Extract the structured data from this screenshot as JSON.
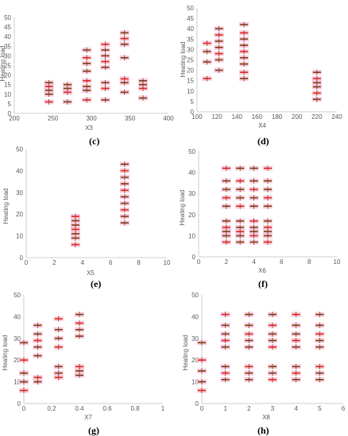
{
  "chart_data": [
    {
      "type": "scatter",
      "caption": "(c)",
      "xlabel": "X3",
      "ylabel": "Heating load",
      "xlim": [
        200,
        400
      ],
      "ylim": [
        0,
        50
      ],
      "xticks": [
        "200",
        "250",
        "300",
        "350",
        "400"
      ],
      "yticks": [
        "0",
        "5",
        "10",
        "15",
        "20",
        "25",
        "30",
        "35",
        "40",
        "45",
        "50"
      ],
      "x": [
        245,
        245,
        245,
        245,
        245,
        269,
        269,
        269,
        269,
        294,
        294,
        294,
        294,
        294,
        294,
        294,
        294,
        318,
        318,
        318,
        318,
        318,
        318,
        318,
        318,
        343,
        343,
        343,
        343,
        343,
        343,
        343,
        367,
        367,
        367,
        367
      ],
      "y": [
        6,
        10,
        12,
        14,
        16,
        6,
        11,
        13,
        15,
        7,
        12,
        14,
        17,
        22,
        26,
        29,
        33,
        7,
        13,
        16,
        24,
        27,
        30,
        33,
        36,
        11,
        16,
        18,
        29,
        36,
        39,
        42,
        8,
        13,
        15,
        17
      ]
    },
    {
      "type": "scatter",
      "caption": "(d)",
      "xlabel": "X4",
      "ylabel": "Heating load",
      "xlim": [
        100,
        240
      ],
      "ylim": [
        0,
        50
      ],
      "xticks": [
        "100",
        "120",
        "140",
        "160",
        "180",
        "200",
        "220",
        "240"
      ],
      "yticks": [
        "0",
        "5",
        "10",
        "15",
        "20",
        "25",
        "30",
        "35",
        "40",
        "45",
        "50"
      ],
      "x": [
        110,
        110,
        110,
        110,
        122,
        122,
        122,
        122,
        122,
        122,
        122,
        147,
        147,
        147,
        147,
        147,
        147,
        147,
        147,
        147,
        220,
        220,
        220,
        220,
        220,
        220
      ],
      "y": [
        16,
        24,
        29,
        33,
        20,
        25,
        28,
        31,
        34,
        37,
        40,
        16,
        19,
        23,
        26,
        29,
        32,
        35,
        38,
        42,
        6,
        9,
        12,
        14,
        16,
        19
      ]
    },
    {
      "type": "scatter",
      "caption": "(e)",
      "xlabel": "X5",
      "ylabel": "Heating load",
      "xlim": [
        0,
        10
      ],
      "ylim": [
        0,
        50
      ],
      "xticks": [
        "0",
        "2",
        "4",
        "6",
        "8",
        "10"
      ],
      "yticks": [
        "0",
        "10",
        "20",
        "30",
        "40",
        "50"
      ],
      "x": [
        3.5,
        3.5,
        3.5,
        3.5,
        3.5,
        3.5,
        3.5,
        7,
        7,
        7,
        7,
        7,
        7,
        7,
        7,
        7,
        7
      ],
      "y": [
        6,
        9,
        11,
        13,
        15,
        17,
        19,
        16,
        19,
        22,
        25,
        28,
        31,
        34,
        37,
        40,
        43
      ]
    },
    {
      "type": "scatter",
      "caption": "(f)",
      "xlabel": "X6",
      "ylabel": "Heating load",
      "xlim": [
        0,
        10
      ],
      "ylim": [
        0,
        50
      ],
      "xticks": [
        "0",
        "2",
        "4",
        "6",
        "8",
        "10"
      ],
      "yticks": [
        "0",
        "10",
        "20",
        "30",
        "40",
        "50"
      ],
      "x": [
        2,
        2,
        2,
        2,
        2,
        2,
        2,
        2,
        2,
        2,
        3,
        3,
        3,
        3,
        3,
        3,
        3,
        3,
        3,
        3,
        4,
        4,
        4,
        4,
        4,
        4,
        4,
        4,
        4,
        4,
        5,
        5,
        5,
        5,
        5,
        5,
        5,
        5,
        5,
        5
      ],
      "y": [
        7,
        10,
        12,
        14,
        17,
        24,
        28,
        32,
        36,
        42,
        7,
        10,
        12,
        14,
        17,
        24,
        28,
        32,
        36,
        42,
        7,
        10,
        12,
        14,
        17,
        24,
        28,
        32,
        36,
        42,
        7,
        10,
        12,
        14,
        17,
        24,
        28,
        32,
        36,
        42
      ]
    },
    {
      "type": "scatter",
      "caption": "(g)",
      "xlabel": "X7",
      "ylabel": "Heating load",
      "xlim": [
        0,
        1
      ],
      "ylim": [
        0,
        50
      ],
      "xticks": [
        "0",
        "0.2",
        "0.4",
        "0.6",
        "0.8",
        "1"
      ],
      "yticks": [
        "0",
        "10",
        "20",
        "30",
        "40",
        "50"
      ],
      "x": [
        0,
        0,
        0,
        0,
        0,
        0.1,
        0.1,
        0.1,
        0.1,
        0.1,
        0.1,
        0.1,
        0.25,
        0.25,
        0.25,
        0.25,
        0.25,
        0.25,
        0.25,
        0.4,
        0.4,
        0.4,
        0.4,
        0.4,
        0.4,
        0.4
      ],
      "y": [
        6,
        10,
        14,
        20,
        28,
        10,
        12,
        22,
        26,
        29,
        32,
        36,
        12,
        14,
        17,
        26,
        30,
        34,
        39,
        13,
        15,
        17,
        31,
        34,
        37,
        41
      ]
    },
    {
      "type": "scatter",
      "caption": "(h)",
      "xlabel": "X8",
      "ylabel": "Heating load",
      "xlim": [
        0,
        6
      ],
      "ylim": [
        0,
        50
      ],
      "xticks": [
        "0",
        "1",
        "2",
        "3",
        "4",
        "5",
        "6"
      ],
      "yticks": [
        "0",
        "10",
        "20",
        "30",
        "40",
        "50"
      ],
      "x": [
        0,
        0,
        0,
        0,
        0,
        1,
        1,
        1,
        1,
        1,
        1,
        1,
        1,
        2,
        2,
        2,
        2,
        2,
        2,
        2,
        2,
        3,
        3,
        3,
        3,
        3,
        3,
        3,
        3,
        4,
        4,
        4,
        4,
        4,
        4,
        4,
        4,
        5,
        5,
        5,
        5,
        5,
        5,
        5,
        5
      ],
      "y": [
        6,
        10,
        15,
        20,
        28,
        11,
        14,
        17,
        26,
        29,
        32,
        36,
        41,
        11,
        14,
        17,
        26,
        29,
        32,
        36,
        41,
        11,
        14,
        17,
        26,
        29,
        32,
        36,
        41,
        11,
        14,
        17,
        26,
        29,
        32,
        36,
        41,
        11,
        14,
        17,
        26,
        29,
        32,
        36,
        41
      ]
    }
  ],
  "colors": {
    "marker_dark": "#7a3b12",
    "marker_red": "#e8211e",
    "marker_pink": "#f7b6d2",
    "axis": "#bfbfbf"
  }
}
